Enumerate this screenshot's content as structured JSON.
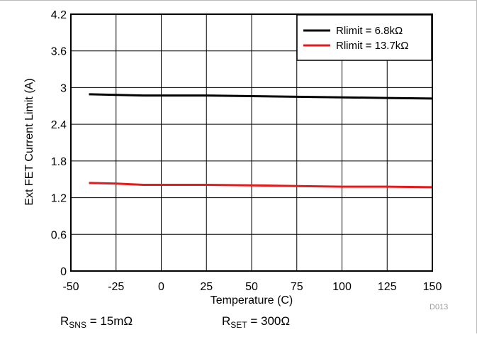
{
  "chart_data": {
    "type": "line",
    "title": "",
    "xlabel": "Temperature (C)",
    "ylabel": "Ext FET Current Limit (A)",
    "xlim": [
      -50,
      150
    ],
    "ylim": [
      0,
      4.2
    ],
    "xticks": [
      -50,
      -25,
      0,
      25,
      50,
      75,
      100,
      125,
      150
    ],
    "yticks": [
      0,
      0.6,
      1.2,
      1.8,
      2.4,
      3,
      3.6,
      4.2
    ],
    "grid": true,
    "legend_position": "top-right",
    "series": [
      {
        "name": "Rlimit = 6.8kΩ",
        "color": "#000000",
        "x": [
          -40,
          -25,
          -10,
          0,
          25,
          50,
          75,
          100,
          125,
          150
        ],
        "y": [
          2.89,
          2.88,
          2.87,
          2.87,
          2.87,
          2.86,
          2.85,
          2.84,
          2.83,
          2.82
        ]
      },
      {
        "name": "Rlimit = 13.7kΩ",
        "color": "#e41a1c",
        "x": [
          -40,
          -25,
          -10,
          0,
          25,
          50,
          75,
          100,
          125,
          150
        ],
        "y": [
          1.44,
          1.43,
          1.41,
          1.41,
          1.41,
          1.4,
          1.39,
          1.38,
          1.38,
          1.37
        ]
      }
    ]
  },
  "figure_code": "D013",
  "conditions": {
    "rsns": {
      "symbol": "R",
      "sub": "SNS",
      "value": " = 15mΩ"
    },
    "rset": {
      "symbol": "R",
      "sub": "SET",
      "value": " = 300Ω"
    }
  }
}
